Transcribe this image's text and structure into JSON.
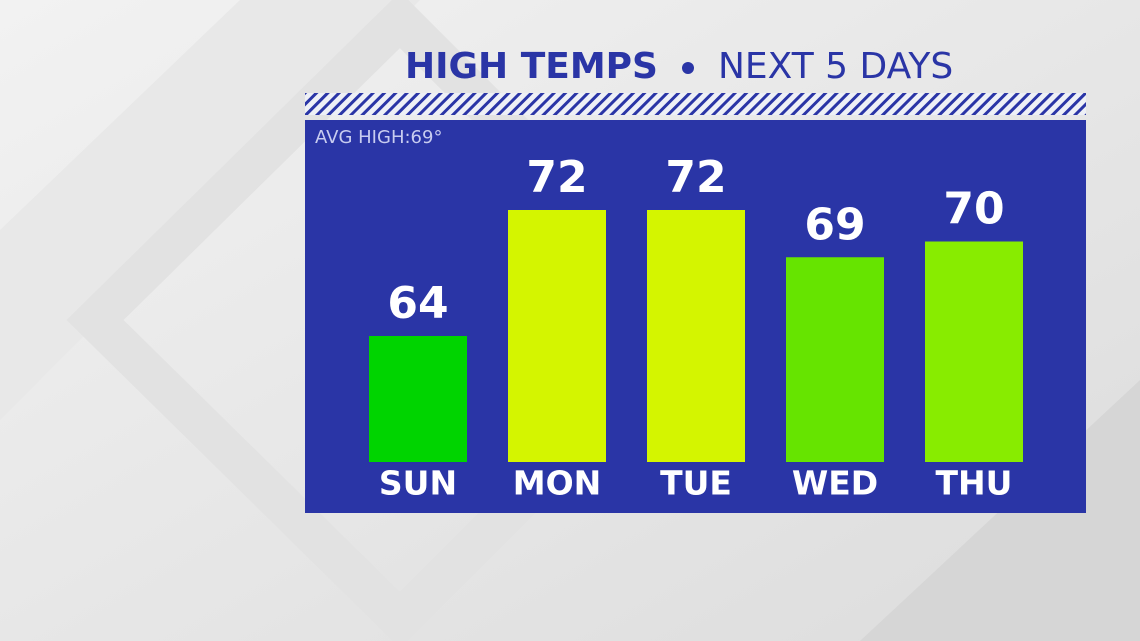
{
  "chart_data": {
    "type": "bar",
    "title": "HIGH TEMPS",
    "subtitle": "NEXT 5 DAYS",
    "annotation": "AVG HIGH:69°",
    "categories": [
      "SUN",
      "MON",
      "TUE",
      "WED",
      "THU"
    ],
    "values": [
      64,
      72,
      72,
      69,
      70
    ],
    "colors": [
      "#00d400",
      "#d4f500",
      "#d4f500",
      "#66e400",
      "#88ec00"
    ],
    "ylim": [
      56,
      78
    ]
  }
}
